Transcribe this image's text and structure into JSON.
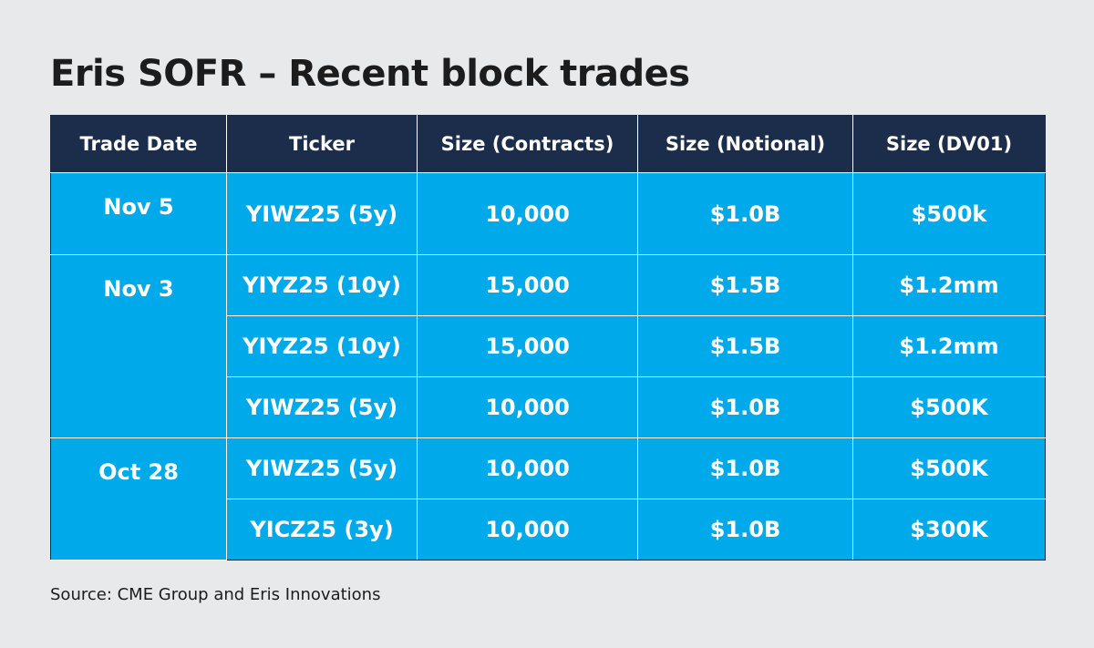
{
  "title": "Eris SOFR – Recent block trades",
  "columns": [
    "Trade Date",
    "Ticker",
    "Size (Contracts)",
    "Size (Notional)",
    "Size (DV01)"
  ],
  "groups": [
    {
      "date": "Nov 5",
      "rows": [
        {
          "ticker": "YIWZ25 (5y)",
          "contracts": "10,000",
          "notional": "$1.0B",
          "dv01": "$500k"
        }
      ]
    },
    {
      "date": "Nov 3",
      "rows": [
        {
          "ticker": "YIYZ25 (10y)",
          "contracts": "15,000",
          "notional": "$1.5B",
          "dv01": "$1.2mm"
        },
        {
          "ticker": "YIYZ25 (10y)",
          "contracts": "15,000",
          "notional": "$1.5B",
          "dv01": "$1.2mm"
        },
        {
          "ticker": "YIWZ25 (5y)",
          "contracts": "10,000",
          "notional": "$1.0B",
          "dv01": "$500K"
        }
      ]
    },
    {
      "date": "Oct 28",
      "rows": [
        {
          "ticker": "YIWZ25 (5y)",
          "contracts": "10,000",
          "notional": "$1.0B",
          "dv01": "$500K"
        },
        {
          "ticker": "YICZ25 (3y)",
          "contracts": "10,000",
          "notional": "$1.0B",
          "dv01": "$300K"
        }
      ]
    }
  ],
  "source": "Source: CME Group and Eris Innovations",
  "colors": {
    "header_bg": "#1b2d4a",
    "cell_bg": "#00a9ea",
    "page_bg": "#e8e9eb"
  },
  "chart_data": {
    "type": "table",
    "title": "Eris SOFR – Recent block trades",
    "columns": [
      "Trade Date",
      "Ticker",
      "Size (Contracts)",
      "Size (Notional)",
      "Size (DV01)"
    ],
    "rows": [
      [
        "Nov 5",
        "YIWZ25 (5y)",
        "10,000",
        "$1.0B",
        "$500k"
      ],
      [
        "Nov 3",
        "YIYZ25 (10y)",
        "15,000",
        "$1.5B",
        "$1.2mm"
      ],
      [
        "Nov 3",
        "YIYZ25 (10y)",
        "15,000",
        "$1.5B",
        "$1.2mm"
      ],
      [
        "Nov 3",
        "YIWZ25 (5y)",
        "10,000",
        "$1.0B",
        "$500K"
      ],
      [
        "Oct 28",
        "YIWZ25 (5y)",
        "10,000",
        "$1.0B",
        "$500K"
      ],
      [
        "Oct 28",
        "YICZ25 (3y)",
        "10,000",
        "$1.0B",
        "$300K"
      ]
    ],
    "source": "Source: CME Group and Eris Innovations"
  }
}
